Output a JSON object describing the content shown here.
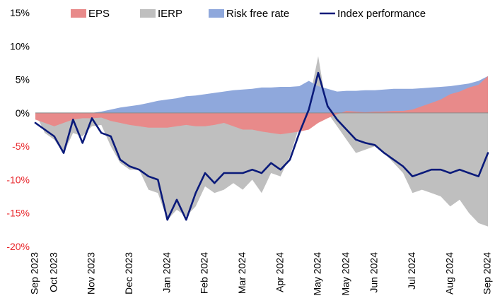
{
  "chart_data": {
    "type": "area",
    "title": "",
    "xlabel": "",
    "ylabel": "",
    "ylim": [
      -20,
      15
    ],
    "y_ticks": [
      {
        "value": 15,
        "label": "15%"
      },
      {
        "value": 10,
        "label": "10%"
      },
      {
        "value": 5,
        "label": "5%"
      },
      {
        "value": 0,
        "label": "0%"
      },
      {
        "value": -5,
        "label": "-5%"
      },
      {
        "value": -10,
        "label": "-10%"
      },
      {
        "value": -15,
        "label": "-15%"
      },
      {
        "value": -20,
        "label": "-20%"
      }
    ],
    "x_ticks": [
      {
        "t": 0.0,
        "label": "Sep 2023"
      },
      {
        "t": 0.5,
        "label": "Oct 2023"
      },
      {
        "t": 1.5,
        "label": "Nov 2023"
      },
      {
        "t": 2.5,
        "label": "Dec 2023"
      },
      {
        "t": 3.5,
        "label": "Jan 2024"
      },
      {
        "t": 4.5,
        "label": "Feb 2024"
      },
      {
        "t": 5.5,
        "label": "Mar 2024"
      },
      {
        "t": 6.5,
        "label": "Apr 2024"
      },
      {
        "t": 7.5,
        "label": "May 2024"
      },
      {
        "t": 8.25,
        "label": "May 2024"
      },
      {
        "t": 9.0,
        "label": "Jun 2024"
      },
      {
        "t": 10.0,
        "label": "Jul 2024"
      },
      {
        "t": 11.0,
        "label": "Aug 2024"
      },
      {
        "t": 12.0,
        "label": "Sep 2024"
      }
    ],
    "legend": {
      "placement": "top",
      "entries": [
        {
          "name": "EPS",
          "color": "#e88a8a",
          "kind": "area"
        },
        {
          "name": "IERP",
          "color": "#bfbfbf",
          "kind": "area"
        },
        {
          "name": "Risk free rate",
          "color": "#8fa8dc",
          "kind": "area"
        },
        {
          "name": "Index performance",
          "color": "#0a1a7a",
          "kind": "line"
        }
      ]
    },
    "x": [
      0,
      0.25,
      0.5,
      0.75,
      1,
      1.25,
      1.5,
      1.75,
      2,
      2.25,
      2.5,
      2.75,
      3,
      3.25,
      3.5,
      3.75,
      4,
      4.25,
      4.5,
      4.75,
      5,
      5.25,
      5.5,
      5.75,
      6,
      6.25,
      6.5,
      6.75,
      7,
      7.25,
      7.5,
      7.75,
      8,
      8.25,
      8.5,
      8.75,
      9,
      9.25,
      9.5,
      9.75,
      10,
      10.25,
      10.5,
      10.75,
      11,
      11.25,
      11.5,
      11.75,
      12
    ],
    "series": [
      {
        "name": "EPS",
        "color": "#e88a8a",
        "values": [
          -1,
          -1.5,
          -2,
          -1.5,
          -1,
          -0.8,
          -0.8,
          -0.7,
          -1.2,
          -1.5,
          -1.8,
          -2.0,
          -2.2,
          -2.2,
          -2.2,
          -2.0,
          -1.8,
          -2.0,
          -2.0,
          -1.8,
          -1.5,
          -2.0,
          -2.5,
          -2.5,
          -2.8,
          -3.0,
          -3.2,
          -3.0,
          -2.8,
          -2.5,
          -1.5,
          -0.8,
          -0.2,
          0.3,
          0.2,
          0.1,
          0.2,
          0.2,
          0.3,
          0.3,
          0.5,
          1.0,
          1.5,
          2.0,
          2.8,
          3.2,
          3.8,
          4.2,
          5.5
        ]
      },
      {
        "name": "IERP",
        "color": "#bfbfbf",
        "values": [
          0,
          -3,
          -4,
          -6,
          -3,
          -3.5,
          -2,
          -1.8,
          -5,
          -7.5,
          -8.5,
          -8.5,
          -11.5,
          -12,
          -16,
          -14.5,
          -15.5,
          -14,
          -11,
          -12,
          -11.5,
          -10.5,
          -11.5,
          -10,
          -12,
          -9,
          -9.5,
          -6.5,
          -2,
          1.5,
          8.5,
          0,
          -2,
          -4,
          -6,
          -5.5,
          -5,
          -6,
          -7.5,
          -9,
          -12,
          -11.5,
          -12,
          -12.5,
          -14,
          -13,
          -15,
          -16.5,
          -17
        ]
      },
      {
        "name": "Risk free rate",
        "color": "#8fa8dc",
        "values": [
          -1,
          -0.8,
          -0.5,
          -0.3,
          -0.2,
          -0.1,
          0,
          0.2,
          0.5,
          0.8,
          1.0,
          1.2,
          1.5,
          1.8,
          2.0,
          2.2,
          2.5,
          2.6,
          2.8,
          3.0,
          3.2,
          3.4,
          3.5,
          3.6,
          3.8,
          3.8,
          3.9,
          3.9,
          4.0,
          4.8,
          4.0,
          3.6,
          3.2,
          3.3,
          3.3,
          3.4,
          3.4,
          3.5,
          3.6,
          3.6,
          3.6,
          3.7,
          3.8,
          3.9,
          4.0,
          4.2,
          4.4,
          4.8,
          5.5
        ]
      },
      {
        "name": "Index performance",
        "color": "#0a1a7a",
        "values": [
          -1.5,
          -2.5,
          -3.5,
          -6,
          -1,
          -4.5,
          -0.8,
          -3,
          -3.5,
          -7,
          -8,
          -8.5,
          -9.5,
          -10,
          -16,
          -13,
          -16,
          -12,
          -9,
          -10.5,
          -9,
          -9,
          -9,
          -8.5,
          -9,
          -7.5,
          -8.5,
          -7,
          -3,
          0.5,
          6,
          1,
          -1,
          -2.5,
          -4,
          -4.5,
          -4.8,
          -6,
          -7,
          -8,
          -9.5,
          -9,
          -8.5,
          -8.5,
          -9,
          -8.5,
          -9,
          -9.5,
          -6
        ]
      }
    ]
  }
}
